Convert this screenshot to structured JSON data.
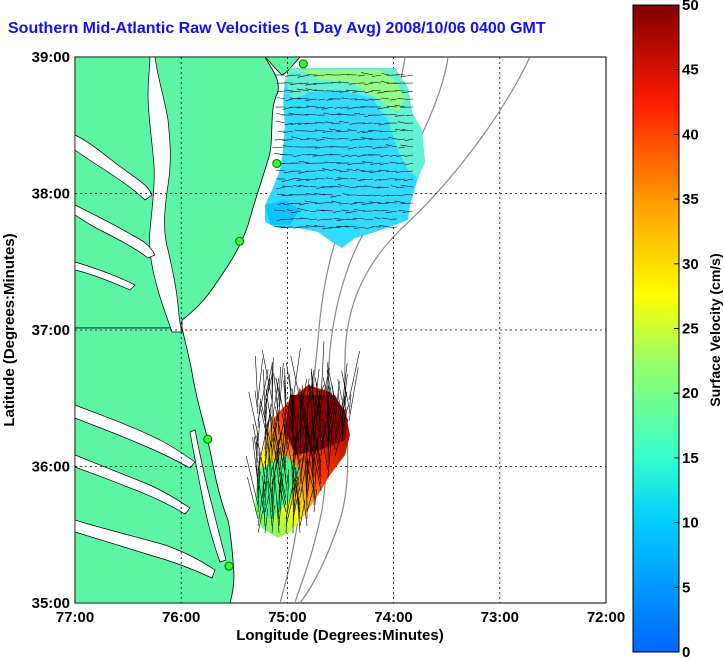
{
  "title": "Southern Mid-Atlantic Raw Velocities (1 Day Avg) 2008/10/06 0400 GMT",
  "x_axis": {
    "label": "Longitude (Degrees:Minutes)",
    "ticks": [
      "77:00",
      "76:00",
      "75:00",
      "74:00",
      "73:00",
      "72:00"
    ]
  },
  "y_axis": {
    "label": "Latitude (Degrees:Minutes)",
    "ticks": [
      "39:00",
      "38:00",
      "37:00",
      "36:00",
      "35:00"
    ]
  },
  "colorbar": {
    "label": "Surface Velocity (cm/s)",
    "min": 0,
    "max": 50,
    "ticks": [
      "0",
      "5",
      "10",
      "15",
      "20",
      "25",
      "30",
      "35",
      "40",
      "45",
      "50"
    ]
  },
  "map": {
    "lon_range": [
      -77,
      -72
    ],
    "lat_range": [
      35,
      39
    ],
    "grid": "dotted",
    "land_color": "#5cf5a3",
    "regions": [
      {
        "name": "northern-coverage",
        "lon": [
          -75.2,
          -73.9
        ],
        "lat": [
          37.5,
          39.0
        ],
        "dominant_speed": 12
      },
      {
        "name": "southern-coverage",
        "lon": [
          -75.3,
          -74.3
        ],
        "lat": [
          35.5,
          36.5
        ],
        "dominant_speed": 42
      }
    ],
    "stations": [
      {
        "lon": -74.85,
        "lat": 38.95
      },
      {
        "lon": -75.1,
        "lat": 38.22
      },
      {
        "lon": -75.45,
        "lat": 37.65
      },
      {
        "lon": -75.75,
        "lat": 36.2
      },
      {
        "lon": -75.55,
        "lat": 35.27
      }
    ]
  }
}
